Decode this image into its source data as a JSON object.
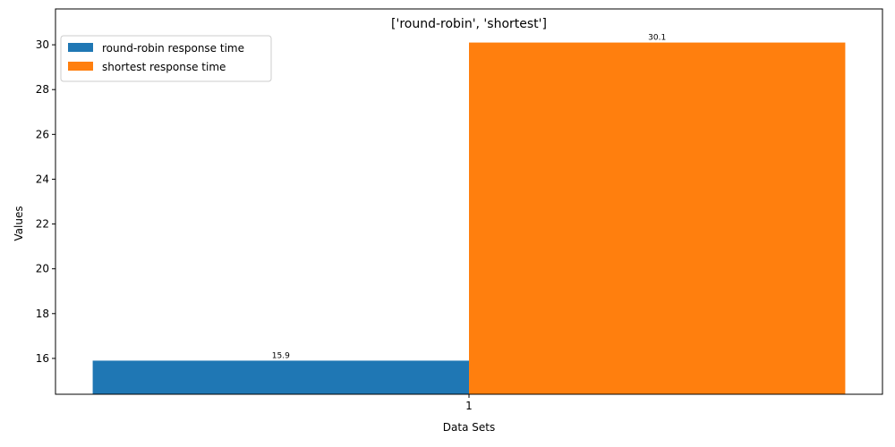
{
  "chart_data": {
    "type": "bar",
    "title": "['round-robin', 'shortest']",
    "xlabel": "Data Sets",
    "ylabel": "Values",
    "categories": [
      "1"
    ],
    "series": [
      {
        "name": "round-robin response time",
        "values": [
          15.9
        ],
        "color": "#1f77b4",
        "label": "15.9"
      },
      {
        "name": "shortest response time",
        "values": [
          30.1
        ],
        "color": "#ff7f0e",
        "label": "30.1"
      }
    ],
    "ylim": [
      14.4,
      31.6
    ],
    "yticks": [
      16,
      18,
      20,
      22,
      24,
      26,
      28,
      30
    ],
    "legend": "upper-left",
    "grid": false
  }
}
